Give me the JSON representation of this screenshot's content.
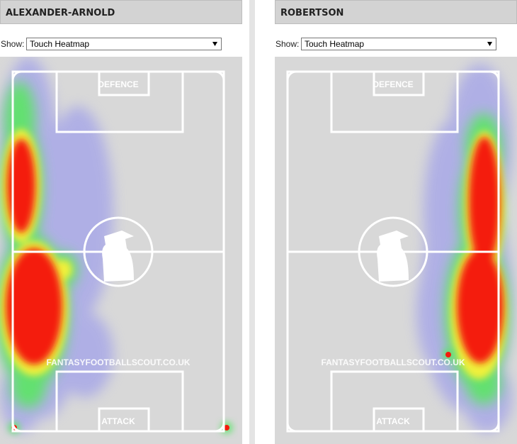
{
  "panels": [
    {
      "title": "ALEXANDER-ARNOLD",
      "show_label": "Show:",
      "select": "Touch Heatmap",
      "pitch": {
        "top_label": "DEFENCE",
        "bottom_label": "ATTACK",
        "watermark": "FANTASYFOOTBALLSCOUT.CO.UK"
      }
    },
    {
      "title": "ROBERTSON",
      "show_label": "Show:",
      "select": "Touch Heatmap",
      "pitch": {
        "top_label": "DEFENCE",
        "bottom_label": "ATTACK",
        "watermark": "FANTASYFOOTBALLSCOUT.CO.UK"
      }
    }
  ]
}
